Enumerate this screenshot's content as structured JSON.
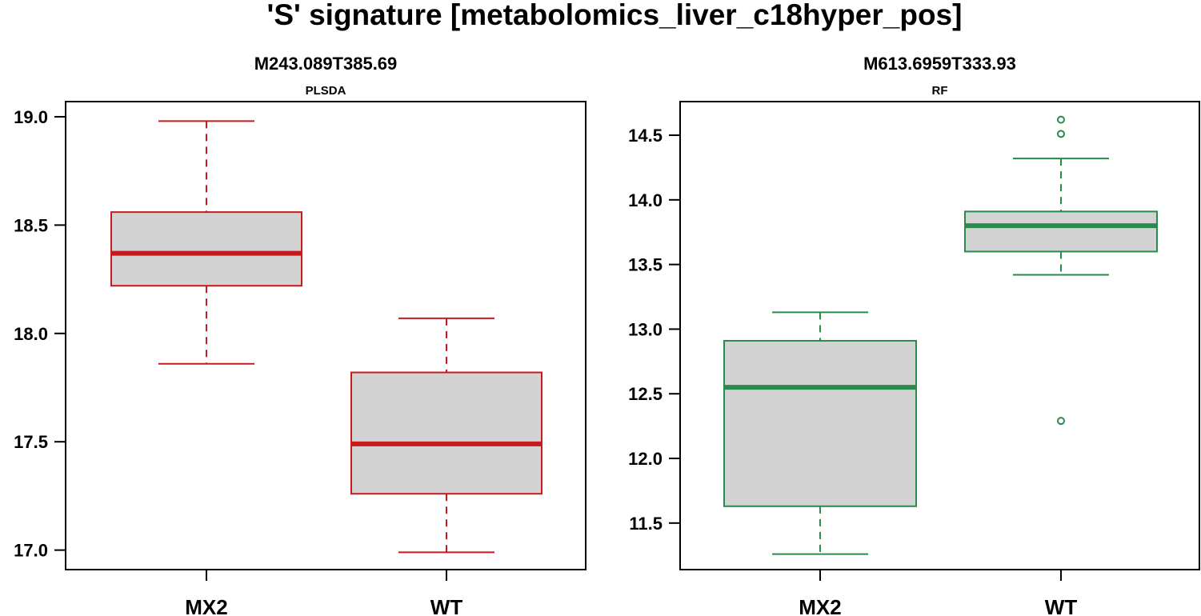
{
  "title": "'S' signature [metabolomics_liver_c18hyper_pos]",
  "chart_data": [
    {
      "type": "box",
      "title": "M243.089T385.69",
      "subtitle": "PLSDA",
      "color": "#C8191E",
      "categories": [
        "MX2",
        "WT"
      ],
      "ylim": [
        16.91,
        19.07
      ],
      "yticks": [
        17.0,
        17.5,
        18.0,
        18.5,
        19.0
      ],
      "ytick_labels": [
        "17.0",
        "17.5",
        "18.0",
        "18.5",
        "19.0"
      ],
      "boxes": [
        {
          "group": "MX2",
          "whisker_low": 17.86,
          "q1": 18.22,
          "median": 18.37,
          "q3": 18.56,
          "whisker_high": 18.98,
          "outliers": []
        },
        {
          "group": "WT",
          "whisker_low": 16.99,
          "q1": 17.26,
          "median": 17.49,
          "q3": 17.82,
          "whisker_high": 18.07,
          "outliers": []
        }
      ]
    },
    {
      "type": "box",
      "title": "M613.6959T333.93",
      "subtitle": "RF",
      "color": "#2A8A4C",
      "categories": [
        "MX2",
        "WT"
      ],
      "ylim": [
        11.14,
        14.76
      ],
      "yticks": [
        11.5,
        12.0,
        12.5,
        13.0,
        13.5,
        14.0,
        14.5
      ],
      "ytick_labels": [
        "11.5",
        "12.0",
        "12.5",
        "13.0",
        "13.5",
        "14.0",
        "14.5"
      ],
      "boxes": [
        {
          "group": "MX2",
          "whisker_low": 11.26,
          "q1": 11.63,
          "median": 12.55,
          "q3": 12.91,
          "whisker_high": 13.13,
          "outliers": []
        },
        {
          "group": "WT",
          "whisker_low": 13.42,
          "q1": 13.6,
          "median": 13.8,
          "q3": 13.91,
          "whisker_high": 14.32,
          "outliers": [
            14.62,
            14.51,
            12.29
          ]
        }
      ]
    }
  ]
}
